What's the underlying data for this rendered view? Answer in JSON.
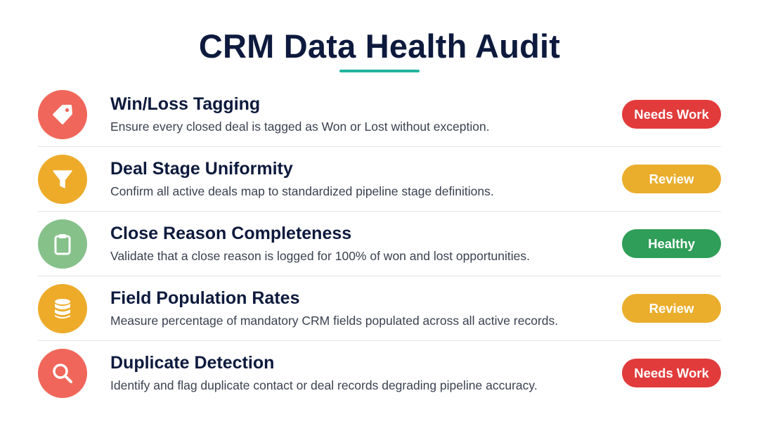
{
  "title": "CRM Data Health Audit",
  "colors": {
    "accent": "#22b3a0",
    "needs_work": "#e23b3b",
    "review": "#eaae2c",
    "healthy": "#2e9e58",
    "icon_red": "#f0665a",
    "icon_amber": "#eeab2a",
    "icon_green": "#86c18a"
  },
  "items": [
    {
      "title": "Win/Loss Tagging",
      "description": "Ensure every closed deal is tagged as Won or Lost without exception.",
      "status": "Needs Work",
      "icon": "tag-icon"
    },
    {
      "title": "Deal Stage Uniformity",
      "description": "Confirm all active deals map to standardized pipeline stage definitions.",
      "status": "Review",
      "icon": "funnel-icon"
    },
    {
      "title": "Close Reason Completeness",
      "description": "Validate that a close reason is logged for 100% of won and lost opportunities.",
      "status": "Healthy",
      "icon": "clipboard-icon"
    },
    {
      "title": "Field Population Rates",
      "description": "Measure percentage of mandatory CRM fields populated across all active records.",
      "status": "Review",
      "icon": "database-icon"
    },
    {
      "title": "Duplicate Detection",
      "description": "Identify and flag duplicate contact or deal records degrading pipeline accuracy.",
      "status": "Needs Work",
      "icon": "search-icon"
    }
  ]
}
